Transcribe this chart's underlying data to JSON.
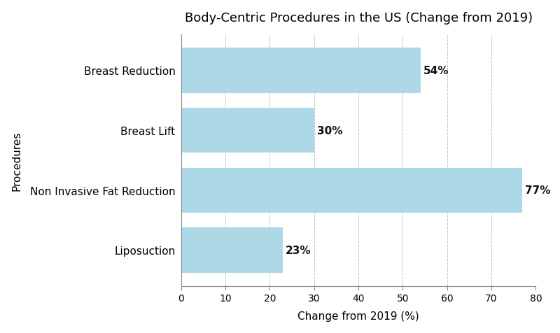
{
  "title": "Body-Centric Procedures in the US (Change from 2019)",
  "categories": [
    "Breast Reduction",
    "Breast Lift",
    "Non Invasive Fat Reduction",
    "Liposuction"
  ],
  "values": [
    54,
    30,
    77,
    23
  ],
  "bar_color": "#add8e6",
  "xlabel": "Change from 2019 (%)",
  "ylabel": "Procedures",
  "xlim": [
    0,
    80
  ],
  "xticks": [
    0,
    10,
    20,
    30,
    40,
    50,
    60,
    70,
    80
  ],
  "label_fontsize": 11,
  "title_fontsize": 13,
  "tick_fontsize": 10,
  "bar_height": 0.75,
  "label_color": "#111111",
  "grid_color": "#bbbbbb",
  "background_color": "#ffffff",
  "value_labels": [
    "54%",
    "30%",
    "77%",
    "23%"
  ],
  "spine_color": "#888888"
}
